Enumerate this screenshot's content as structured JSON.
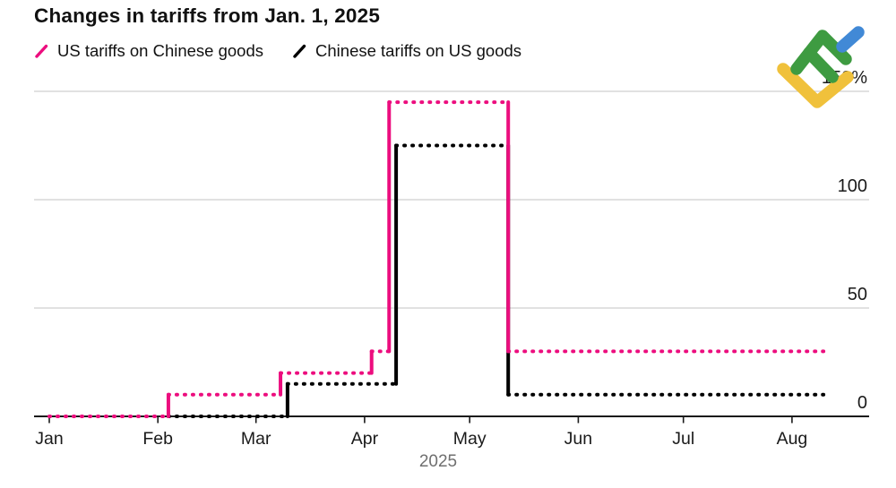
{
  "title": "Changes in tariffs from Jan. 1, 2025",
  "legend": [
    {
      "label": "US tariffs on Chinese goods",
      "color": "#EC0D7E"
    },
    {
      "label": "Chinese tariffs on US goods",
      "color": "#000000"
    }
  ],
  "watermark": {
    "name": "litefinance-logo",
    "colors": {
      "green": "#3E9B41",
      "blue": "#4189D6",
      "yellow": "#F0C13B"
    }
  },
  "chart_data": {
    "type": "line",
    "subtype": "step",
    "title": "Changes in tariffs from Jan. 1, 2025",
    "grid": true,
    "legend_position": "top-left",
    "colors": {
      "grid": "#cfcfcf",
      "axis": "#1a1a1a",
      "tick_text": "#1a1a1a",
      "year_text": "#6f6f6f"
    },
    "x_axis": {
      "year_label": "2025",
      "months": [
        {
          "label": "Jan",
          "day": 0
        },
        {
          "label": "Feb",
          "day": 31
        },
        {
          "label": "Mar",
          "day": 59
        },
        {
          "label": "Apr",
          "day": 90
        },
        {
          "label": "May",
          "day": 120
        },
        {
          "label": "Jun",
          "day": 151
        },
        {
          "label": "Jul",
          "day": 181
        },
        {
          "label": "Aug",
          "day": 212
        }
      ]
    },
    "y_axis": {
      "range": [
        0,
        150
      ],
      "ticks": [
        {
          "value": 0,
          "label": "0"
        },
        {
          "value": 50,
          "label": "50"
        },
        {
          "value": 100,
          "label": "100"
        },
        {
          "value": 150,
          "label": "150%"
        }
      ]
    },
    "series": [
      {
        "name": "Chinese tariffs on US goods",
        "color": "#000000",
        "style": "dotted plateaus, solid steps",
        "points": [
          {
            "day": 34,
            "value": 0
          },
          {
            "day": 68,
            "value": 15
          },
          {
            "day": 99,
            "value": 125
          },
          {
            "day": 131,
            "value": 10
          }
        ],
        "end_day": 221
      },
      {
        "name": "US tariffs on Chinese goods",
        "color": "#EC0D7E",
        "style": "dotted plateaus, solid steps",
        "points": [
          {
            "day": 0,
            "value": 0
          },
          {
            "day": 34,
            "value": 10
          },
          {
            "day": 66,
            "value": 20
          },
          {
            "day": 92,
            "value": 30
          },
          {
            "day": 97,
            "value": 145
          },
          {
            "day": 131,
            "value": 30
          }
        ],
        "end_day": 221
      }
    ]
  }
}
